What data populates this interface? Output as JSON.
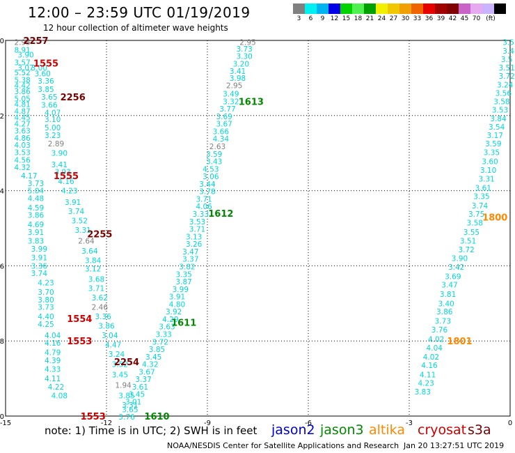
{
  "header": {
    "title": "12:00 – 23:59 UTC 01/19/2019",
    "subtitle": "12 hour collection of altimeter wave heights"
  },
  "legend": {
    "colors": [
      "#808080",
      "#00f0f0",
      "#00b4f0",
      "#0000e6",
      "#00d200",
      "#50f050",
      "#00a000",
      "#f0f000",
      "#f0c800",
      "#f0a000",
      "#f06400",
      "#e60000",
      "#a00000",
      "#800000",
      "#c864c8",
      "#e6aaf0",
      "#c8b4ff",
      "#000000"
    ],
    "labels": [
      "3",
      "6",
      "9",
      "12",
      "15",
      "18",
      "21",
      "24",
      "27",
      "30",
      "33",
      "36",
      "39",
      "42",
      "45",
      "70",
      "(ft)"
    ]
  },
  "footer": {
    "note": "note:  1) Time is in UTC;  2) SWH is in feet",
    "satellites": [
      {
        "name": "jason2",
        "color": "#0000cc"
      },
      {
        "name": "jason3",
        "color": "#008800"
      },
      {
        "name": "altika",
        "color": "#ff8800"
      },
      {
        "name": "cryosat",
        "color": "#cc0000"
      },
      {
        "name": "s3a",
        "color": "#770000"
      }
    ],
    "credit": "NOAA/NESDIS Center for Satellite Applications and Research",
    "timestamp": "Jan 20 13:27:51 UTC 2019"
  },
  "chart_data": {
    "type": "scatter",
    "xlim": [
      -15,
      0
    ],
    "ylim": [
      -10,
      0
    ],
    "xticks": [
      "-15",
      "-12",
      "-9",
      "-6",
      "-3",
      "0"
    ],
    "yticks": [
      "0",
      "-2",
      "-4",
      "-6",
      "-8",
      "-10"
    ],
    "grid": true,
    "tracks": [
      {
        "label": "2257",
        "label_color": "#770000",
        "label_pos": [
          -14.1,
          0.0
        ],
        "color": "#00d8d8",
        "points": [
          [
            -14.5,
            -0.05,
            "2.95"
          ],
          [
            -14.5,
            -0.25,
            "8.91"
          ],
          [
            -14.4,
            -0.38,
            "3.90"
          ],
          [
            -14.5,
            -0.58,
            "3.57"
          ],
          [
            -14.4,
            -0.72,
            "3.07"
          ],
          [
            -14.5,
            -0.85,
            "5.52"
          ],
          [
            -14.5,
            -1.05,
            "5.38"
          ],
          [
            -14.5,
            -1.2,
            "4.42"
          ],
          [
            -14.5,
            -1.35,
            "3.86"
          ],
          [
            -14.5,
            -1.55,
            "5.05"
          ],
          [
            -14.5,
            -1.7,
            "4.81"
          ],
          [
            -14.5,
            -1.88,
            "4.87"
          ],
          [
            -14.5,
            -2.05,
            "4.45"
          ],
          [
            -14.5,
            -2.22,
            "4.27"
          ],
          [
            -14.5,
            -2.4,
            "3.63"
          ],
          [
            -14.5,
            -2.6,
            "4.86"
          ],
          [
            -14.5,
            -2.78,
            "4.03"
          ],
          [
            -14.5,
            -2.98,
            "3.53"
          ],
          [
            -14.5,
            -3.18,
            "4.56"
          ],
          [
            -14.5,
            -3.38,
            "4.32"
          ],
          [
            -14.3,
            -3.6,
            "4.17"
          ],
          [
            -14.1,
            -3.8,
            "3.73"
          ],
          [
            -14.1,
            -4.0,
            "5.04"
          ],
          [
            -14.1,
            -4.2,
            "4.48"
          ],
          [
            -14.1,
            -4.45,
            "4.59"
          ],
          [
            -14.1,
            -4.65,
            "3.86"
          ],
          [
            -14.1,
            -4.9,
            "4.69"
          ],
          [
            -14.1,
            -5.1,
            "3.91"
          ],
          [
            -14.1,
            -5.33,
            "3.83"
          ],
          [
            -14.0,
            -5.55,
            "3.99"
          ],
          [
            -14.0,
            -5.78,
            "3.91"
          ],
          [
            -14.0,
            -6.0,
            "3.36"
          ],
          [
            -14.0,
            -6.2,
            "3.74"
          ],
          [
            -13.8,
            -6.45,
            "4.23"
          ],
          [
            -13.8,
            -6.7,
            "3.70"
          ],
          [
            -13.8,
            -6.9,
            "3.80"
          ],
          [
            -13.8,
            -7.1,
            "3.73"
          ],
          [
            -13.8,
            -7.35,
            "4.40"
          ],
          [
            -13.8,
            -7.55,
            "4.25"
          ],
          [
            -13.6,
            -7.85,
            "4.04"
          ],
          [
            -13.6,
            -8.05,
            "4.16"
          ],
          [
            -13.6,
            -8.3,
            "4.79"
          ],
          [
            -13.6,
            -8.52,
            "4.39"
          ],
          [
            -13.6,
            -8.75,
            "4.33"
          ],
          [
            -13.6,
            -9.0,
            "4.11"
          ],
          [
            -13.5,
            -9.22,
            "4.22"
          ],
          [
            -13.4,
            -9.45,
            "4.08"
          ]
        ]
      },
      {
        "label": "1555",
        "label_color": "#cc0000",
        "label_pos": [
          -13.8,
          -0.6
        ],
        "color": "#00d8d8",
        "points": [
          [
            -14.0,
            -0.72,
            "3.00"
          ],
          [
            -13.9,
            -0.88,
            "3.60"
          ],
          [
            -13.8,
            -1.08,
            "3.36"
          ],
          [
            -13.8,
            -1.3,
            "3.85"
          ],
          [
            -13.7,
            -1.5,
            "3.65"
          ],
          [
            -13.7,
            -1.72,
            "3.66"
          ],
          [
            -13.6,
            -1.92,
            "4.07"
          ],
          [
            -13.6,
            -2.1,
            "3.10"
          ],
          [
            -13.6,
            -2.32,
            "5.00"
          ],
          [
            -13.6,
            -2.52,
            "3.23"
          ],
          [
            -13.5,
            -2.75,
            "2.89"
          ],
          [
            -13.4,
            -3.0,
            "3.90"
          ],
          [
            -13.4,
            -3.3,
            "3.41"
          ],
          [
            -13.3,
            -3.5,
            "3.93"
          ],
          [
            -13.2,
            -3.75,
            "4.16"
          ],
          [
            -13.1,
            -4.0,
            "4.23"
          ],
          [
            -13.0,
            -4.3,
            "3.91"
          ],
          [
            -12.9,
            -4.55,
            "3.74"
          ],
          [
            -12.8,
            -4.8,
            "3.52"
          ],
          [
            -12.7,
            -5.05,
            "3.31"
          ],
          [
            -12.6,
            -5.33,
            "2.64"
          ],
          [
            -12.5,
            -5.6,
            "3.64"
          ],
          [
            -12.4,
            -5.85,
            "3.84"
          ],
          [
            -12.4,
            -6.08,
            "3.12"
          ],
          [
            -12.3,
            -6.35,
            "3.68"
          ],
          [
            -12.3,
            -6.6,
            "3.71"
          ],
          [
            -12.2,
            -6.85,
            "3.62"
          ],
          [
            -12.2,
            -7.1,
            "2.46"
          ],
          [
            -12.1,
            -7.35,
            "3.36"
          ],
          [
            -12.0,
            -7.6,
            "3.86"
          ],
          [
            -11.9,
            -7.85,
            "3.04"
          ],
          [
            -11.8,
            -8.1,
            "4.47"
          ],
          [
            -11.7,
            -8.35,
            "3.24"
          ],
          [
            -11.6,
            -8.62,
            "3.52"
          ],
          [
            -11.6,
            -8.9,
            "3.45"
          ],
          [
            -11.5,
            -9.17,
            "1.94"
          ],
          [
            -11.4,
            -9.45,
            "3.85"
          ],
          [
            -11.3,
            -9.7,
            "3.31"
          ]
        ]
      },
      {
        "label": "2256",
        "label_color": "#770000",
        "label_pos": [
          -13.0,
          -1.5
        ],
        "color": "#00d8d8",
        "points": []
      },
      {
        "label": "1555",
        "label_color": "#cc0000",
        "label_pos": [
          -13.2,
          -3.6
        ],
        "color": "#00d8d8",
        "points": []
      },
      {
        "label": "2255",
        "label_color": "#770000",
        "label_pos": [
          -12.2,
          -5.15
        ],
        "color": "#00d8d8",
        "points": []
      },
      {
        "label": "1554",
        "label_color": "#cc0000",
        "label_pos": [
          -12.8,
          -7.4
        ],
        "color": "#00d8d8",
        "points": []
      },
      {
        "label": "1553",
        "label_color": "#cc0000",
        "label_pos": [
          -12.8,
          -8.0
        ],
        "color": "#00d8d8",
        "points": []
      },
      {
        "label": "2254",
        "label_color": "#770000",
        "label_pos": [
          -11.4,
          -8.55
        ],
        "color": "#00d8d8",
        "points": []
      },
      {
        "label": "1553",
        "label_color": "#cc0000",
        "label_pos": [
          -12.4,
          -10.0
        ],
        "color": "#00d8d8",
        "points": []
      },
      {
        "label": "1613",
        "label_color": "#008800",
        "label_pos": [
          -7.7,
          -1.62
        ],
        "color": "#00d8d8",
        "points": [
          [
            -7.8,
            -0.05,
            "2.95"
          ],
          [
            -7.9,
            -0.22,
            "3.73"
          ],
          [
            -7.9,
            -0.42,
            "3.30"
          ],
          [
            -8.0,
            -0.62,
            "3.20"
          ],
          [
            -8.1,
            -0.82,
            "3.41"
          ],
          [
            -8.1,
            -1.0,
            "3.98"
          ],
          [
            -8.2,
            -1.2,
            "2.95"
          ],
          [
            -8.3,
            -1.42,
            "3.49"
          ],
          [
            -8.3,
            -1.62,
            "3.32"
          ],
          [
            -8.4,
            -1.82,
            "3.77"
          ],
          [
            -8.5,
            -2.02,
            "3.69"
          ],
          [
            -8.5,
            -2.22,
            "3.67"
          ],
          [
            -8.6,
            -2.42,
            "3.66"
          ],
          [
            -8.6,
            -2.62,
            "4.34"
          ],
          [
            -8.7,
            -2.82,
            "2.63"
          ],
          [
            -8.8,
            -3.02,
            "3.59"
          ],
          [
            -8.8,
            -3.22,
            "3.43"
          ],
          [
            -8.9,
            -3.42,
            "4.53"
          ],
          [
            -8.9,
            -3.62,
            "3.06"
          ],
          [
            -9.0,
            -3.82,
            "3.44"
          ],
          [
            -9.0,
            -4.02,
            "3.78"
          ],
          [
            -9.1,
            -4.22,
            "3.71"
          ],
          [
            -9.1,
            -4.42,
            "4.06"
          ],
          [
            -9.2,
            -4.62,
            "3.33"
          ],
          [
            -9.3,
            -4.82,
            "3.53"
          ],
          [
            -9.3,
            -5.02,
            "3.71"
          ],
          [
            -9.4,
            -5.22,
            "3.13"
          ],
          [
            -9.4,
            -5.42,
            "3.26"
          ],
          [
            -9.5,
            -5.62,
            "3.47"
          ],
          [
            -9.5,
            -5.82,
            "3.37"
          ],
          [
            -9.6,
            -6.02,
            "3.82"
          ],
          [
            -9.7,
            -6.22,
            "3.35"
          ],
          [
            -9.7,
            -6.42,
            "3.87"
          ],
          [
            -9.8,
            -6.62,
            "3.99"
          ],
          [
            -9.9,
            -6.82,
            "3.91"
          ],
          [
            -9.9,
            -7.02,
            "4.80"
          ],
          [
            -10.0,
            -7.22,
            "3.92"
          ],
          [
            -10.1,
            -7.42,
            "4.29"
          ],
          [
            -10.2,
            -7.62,
            "3.63"
          ],
          [
            -10.3,
            -7.82,
            "3.33"
          ],
          [
            -10.4,
            -8.02,
            "3.72"
          ],
          [
            -10.5,
            -8.22,
            "3.85"
          ],
          [
            -10.6,
            -8.42,
            "3.45"
          ],
          [
            -10.7,
            -8.62,
            "4.32"
          ],
          [
            -10.8,
            -8.82,
            "3.67"
          ],
          [
            -10.9,
            -9.02,
            "3.37"
          ],
          [
            -11.0,
            -9.22,
            "3.61"
          ],
          [
            -11.1,
            -9.42,
            "3.45"
          ],
          [
            -11.2,
            -9.62,
            "3.01"
          ],
          [
            -11.3,
            -9.82,
            "3.65"
          ],
          [
            -11.4,
            -10.02,
            "3.76"
          ]
        ]
      },
      {
        "label": "1612",
        "label_color": "#008800",
        "label_pos": [
          -8.6,
          -4.6
        ],
        "color": "#00d8d8",
        "points": []
      },
      {
        "label": "1611",
        "label_color": "#008800",
        "label_pos": [
          -9.7,
          -7.5
        ],
        "color": "#00d8d8",
        "points": []
      },
      {
        "label": "1610",
        "label_color": "#008800",
        "label_pos": [
          -10.5,
          -10.0
        ],
        "color": "#00d8d8",
        "points": []
      },
      {
        "label": "1800",
        "label_color": "#ff8800",
        "label_pos": [
          -0.45,
          -4.7
        ],
        "color": "#00d8d8",
        "points": [
          [
            -0.05,
            -0.05,
            "3.5"
          ],
          [
            -0.05,
            -0.28,
            "3.4"
          ],
          [
            -0.1,
            -0.5,
            "3.5"
          ],
          [
            -0.1,
            -0.72,
            "3.51"
          ],
          [
            -0.1,
            -0.95,
            "3.72"
          ],
          [
            -0.15,
            -1.18,
            "3.24"
          ],
          [
            -0.2,
            -1.4,
            "3.56"
          ],
          [
            -0.25,
            -1.62,
            "3.58"
          ],
          [
            -0.3,
            -1.85,
            "3.53"
          ],
          [
            -0.35,
            -2.08,
            "3.84"
          ],
          [
            -0.4,
            -2.3,
            "3.54"
          ],
          [
            -0.45,
            -2.52,
            "3.17"
          ],
          [
            -0.5,
            -2.75,
            "3.59"
          ],
          [
            -0.55,
            -2.98,
            "3.35"
          ],
          [
            -0.6,
            -3.22,
            "3.60"
          ],
          [
            -0.65,
            -3.45,
            "3.10"
          ],
          [
            -0.7,
            -3.68,
            "3.31"
          ],
          [
            -0.8,
            -3.92,
            "3.61"
          ],
          [
            -0.85,
            -4.15,
            "3.35"
          ],
          [
            -0.9,
            -4.4,
            "3.74"
          ],
          [
            -1.0,
            -4.62,
            "3.75"
          ],
          [
            -1.05,
            -4.85,
            "3.58"
          ],
          [
            -1.15,
            -5.1,
            "3.55"
          ],
          [
            -1.25,
            -5.33,
            "3.51"
          ],
          [
            -1.3,
            -5.57,
            "3.72"
          ],
          [
            -1.5,
            -5.8,
            "3.90"
          ],
          [
            -1.6,
            -6.03,
            "3.42"
          ],
          [
            -1.7,
            -6.28,
            "3.69"
          ],
          [
            -1.8,
            -6.5,
            "3.47"
          ],
          [
            -1.85,
            -6.75,
            "3.81"
          ],
          [
            -1.9,
            -7.0,
            "3.40"
          ],
          [
            -1.95,
            -7.22,
            "3.86"
          ],
          [
            -2.0,
            -7.47,
            "3.73"
          ],
          [
            -2.1,
            -7.7,
            "3.76"
          ],
          [
            -2.2,
            -7.95,
            "4.02"
          ],
          [
            -2.25,
            -8.18,
            "4.04"
          ],
          [
            -2.35,
            -8.42,
            "4.02"
          ],
          [
            -2.4,
            -8.65,
            "4.16"
          ],
          [
            -2.45,
            -8.9,
            "4.11"
          ],
          [
            -2.5,
            -9.12,
            "4.23"
          ],
          [
            -2.6,
            -9.35,
            "3.83"
          ]
        ]
      },
      {
        "label": "1801",
        "label_color": "#ff8800",
        "label_pos": [
          -1.5,
          -8.0
        ],
        "color": "#00d8d8",
        "points": []
      }
    ]
  }
}
